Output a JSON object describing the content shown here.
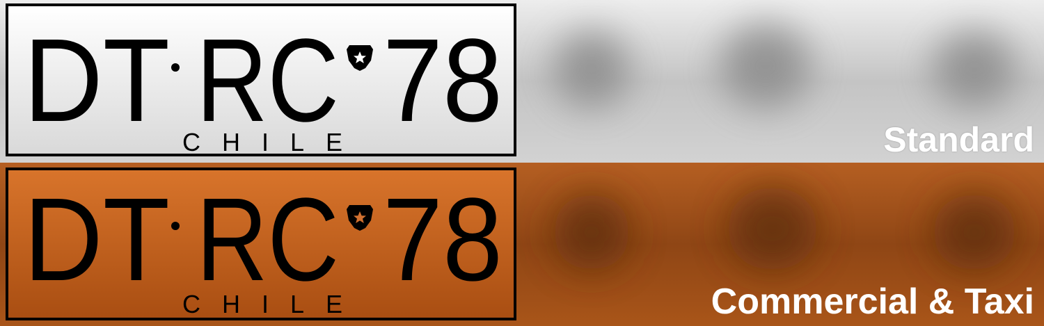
{
  "colors": {
    "standard_plate_top": "#ffffff",
    "standard_plate_bottom": "#d7d7d7",
    "standard_background": "#c8c8c8",
    "standard_blur": "#8a8a8a",
    "commercial_plate_top": "#d9752c",
    "commercial_plate_bottom": "#a94e12",
    "commercial_background": "#a9561c",
    "commercial_blur": "#6a3410",
    "text": "#000000",
    "caption": "#ffffff"
  },
  "plates": [
    {
      "caption": "Standard",
      "letters": "DT",
      "separator": "·",
      "letters2": "RC",
      "digits": "78",
      "country": "CHILE",
      "emblem": "chile-police-shield-icon"
    },
    {
      "caption": "Commercial & Taxi",
      "letters": "DT",
      "separator": "·",
      "letters2": "RC",
      "digits": "78",
      "country": "CHILE",
      "emblem": "chile-police-shield-icon"
    }
  ]
}
